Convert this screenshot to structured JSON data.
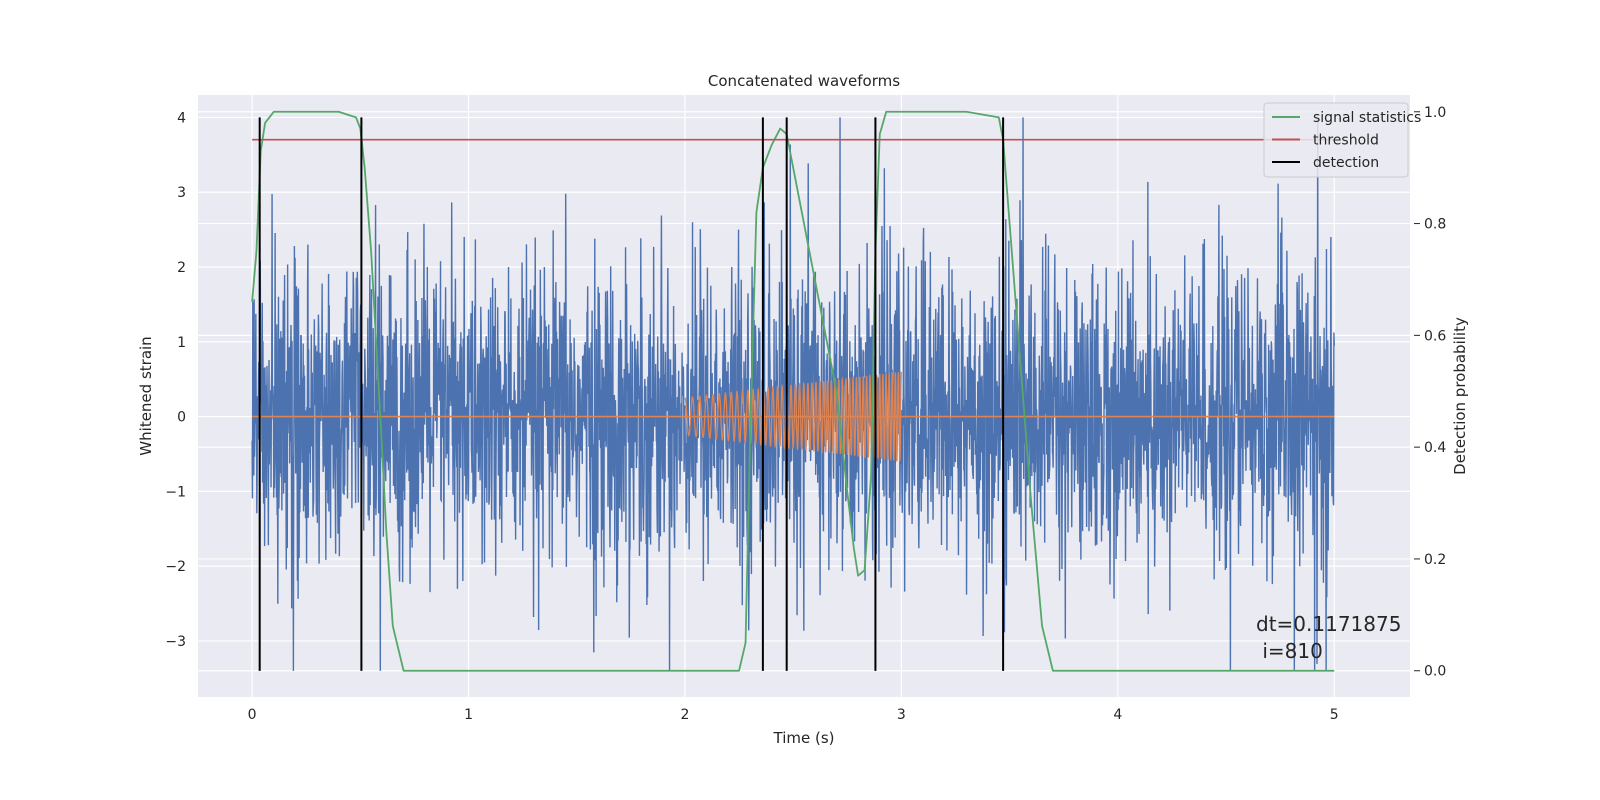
{
  "chart_data": {
    "type": "line",
    "title": "Concatenated waveforms",
    "xlabel": "Time (s)",
    "ylabel": "Whitened strain",
    "y2label": "Detection probability",
    "xlim": [
      -0.25,
      5.35
    ],
    "ylim": [
      -3.75,
      4.3
    ],
    "y2lim": [
      -0.047,
      1.03
    ],
    "x_ticks": [
      0,
      1,
      2,
      3,
      4,
      5
    ],
    "y_ticks": [
      -3,
      -2,
      -1,
      0,
      1,
      2,
      3,
      4
    ],
    "y2_ticks": [
      0.0,
      0.2,
      0.4,
      0.6,
      0.8,
      1.0
    ],
    "x_tick_labels": [
      "0",
      "1",
      "2",
      "3",
      "4",
      "5"
    ],
    "y_tick_labels": [
      "−3",
      "−2",
      "−1",
      "0",
      "1",
      "2",
      "3",
      "4"
    ],
    "y2_tick_labels": [
      "0.0",
      "0.2",
      "0.4",
      "0.6",
      "0.8",
      "1.0"
    ],
    "grid": true,
    "legend_position": "top-right",
    "noise": {
      "x_range": [
        0,
        5
      ],
      "y_range_approx": [
        -3.4,
        4.0
      ],
      "color": "#4c72b0"
    },
    "injected_chirp": {
      "x_range": [
        2.0,
        3.0
      ],
      "amplitude_start": 0.25,
      "amplitude_end": 0.6,
      "baseline": 0,
      "color": "#dd8452"
    },
    "series": [
      {
        "name": "signal statistics",
        "color": "#55a868",
        "axis": "right",
        "x": [
          0,
          0.02,
          0.04,
          0.06,
          0.1,
          0.2,
          0.4,
          0.48,
          0.5,
          0.52,
          0.55,
          0.6,
          0.62,
          0.65,
          0.7,
          1.0,
          1.5,
          2.0,
          2.25,
          2.28,
          2.3,
          2.33,
          2.36,
          2.4,
          2.44,
          2.47,
          2.5,
          2.55,
          2.6,
          2.65,
          2.7,
          2.75,
          2.78,
          2.8,
          2.83,
          2.86,
          2.88,
          2.9,
          2.93,
          3.0,
          3.3,
          3.45,
          3.47,
          3.5,
          3.55,
          3.6,
          3.65,
          3.7,
          4.0,
          4.5,
          5.0
        ],
        "y": [
          0.66,
          0.75,
          0.93,
          0.98,
          1.0,
          1.0,
          1.0,
          0.99,
          0.97,
          0.9,
          0.75,
          0.4,
          0.25,
          0.08,
          0.0,
          0.0,
          0.0,
          0.0,
          0.0,
          0.05,
          0.4,
          0.82,
          0.9,
          0.94,
          0.97,
          0.96,
          0.9,
          0.8,
          0.7,
          0.6,
          0.5,
          0.32,
          0.22,
          0.17,
          0.18,
          0.35,
          0.75,
          0.96,
          1.0,
          1.0,
          1.0,
          0.99,
          0.95,
          0.8,
          0.55,
          0.3,
          0.08,
          0.0,
          0.0,
          0.0,
          0.0
        ]
      },
      {
        "name": "threshold",
        "color": "#c44e52",
        "axis": "right",
        "x": [
          0,
          5.0
        ],
        "y": [
          0.95,
          0.95
        ]
      },
      {
        "name": "detection",
        "color": "#000000",
        "axis": "left",
        "x": [
          0.035,
          0.505,
          2.36,
          2.47,
          2.88,
          3.47
        ],
        "ymin": -3.4,
        "ymax": 4.0
      }
    ],
    "annotations": [
      "dt=0.1171875",
      " i=810"
    ]
  }
}
